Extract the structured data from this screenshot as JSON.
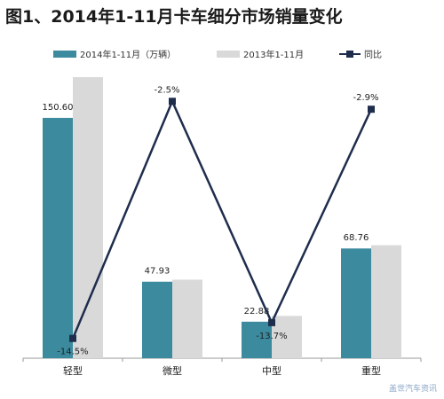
{
  "title": "图1、2014年1-11月卡车细分市场销量变化",
  "colors": {
    "series1": "#3b8a9e",
    "series2": "#d9d9d9",
    "line": "#1f2d4d",
    "axis": "#9a9a9a"
  },
  "watermark": "盖世汽车资讯",
  "chart_data": {
    "type": "bar",
    "categories": [
      "轻型",
      "微型",
      "中型",
      "重型"
    ],
    "series": [
      {
        "name": "2014年1-11月（万辆）",
        "values": [
          150.6,
          47.93,
          22.88,
          68.76
        ],
        "labels": [
          "150.60",
          "47.93",
          "22.88",
          "68.76"
        ]
      },
      {
        "name": "2013年1-11月",
        "values": [
          176.1,
          49.2,
          26.5,
          70.8
        ]
      }
    ],
    "line_series": {
      "name": "同比",
      "values": [
        -14.5,
        -2.5,
        -13.7,
        -2.9
      ],
      "labels": [
        "-14.5%",
        "-2.5%",
        "-13.7%",
        "-2.9%"
      ]
    },
    "ylim": [
      0,
      180
    ],
    "y2lim": [
      -15.5,
      -1.5
    ],
    "legend": "top",
    "grid": false
  }
}
